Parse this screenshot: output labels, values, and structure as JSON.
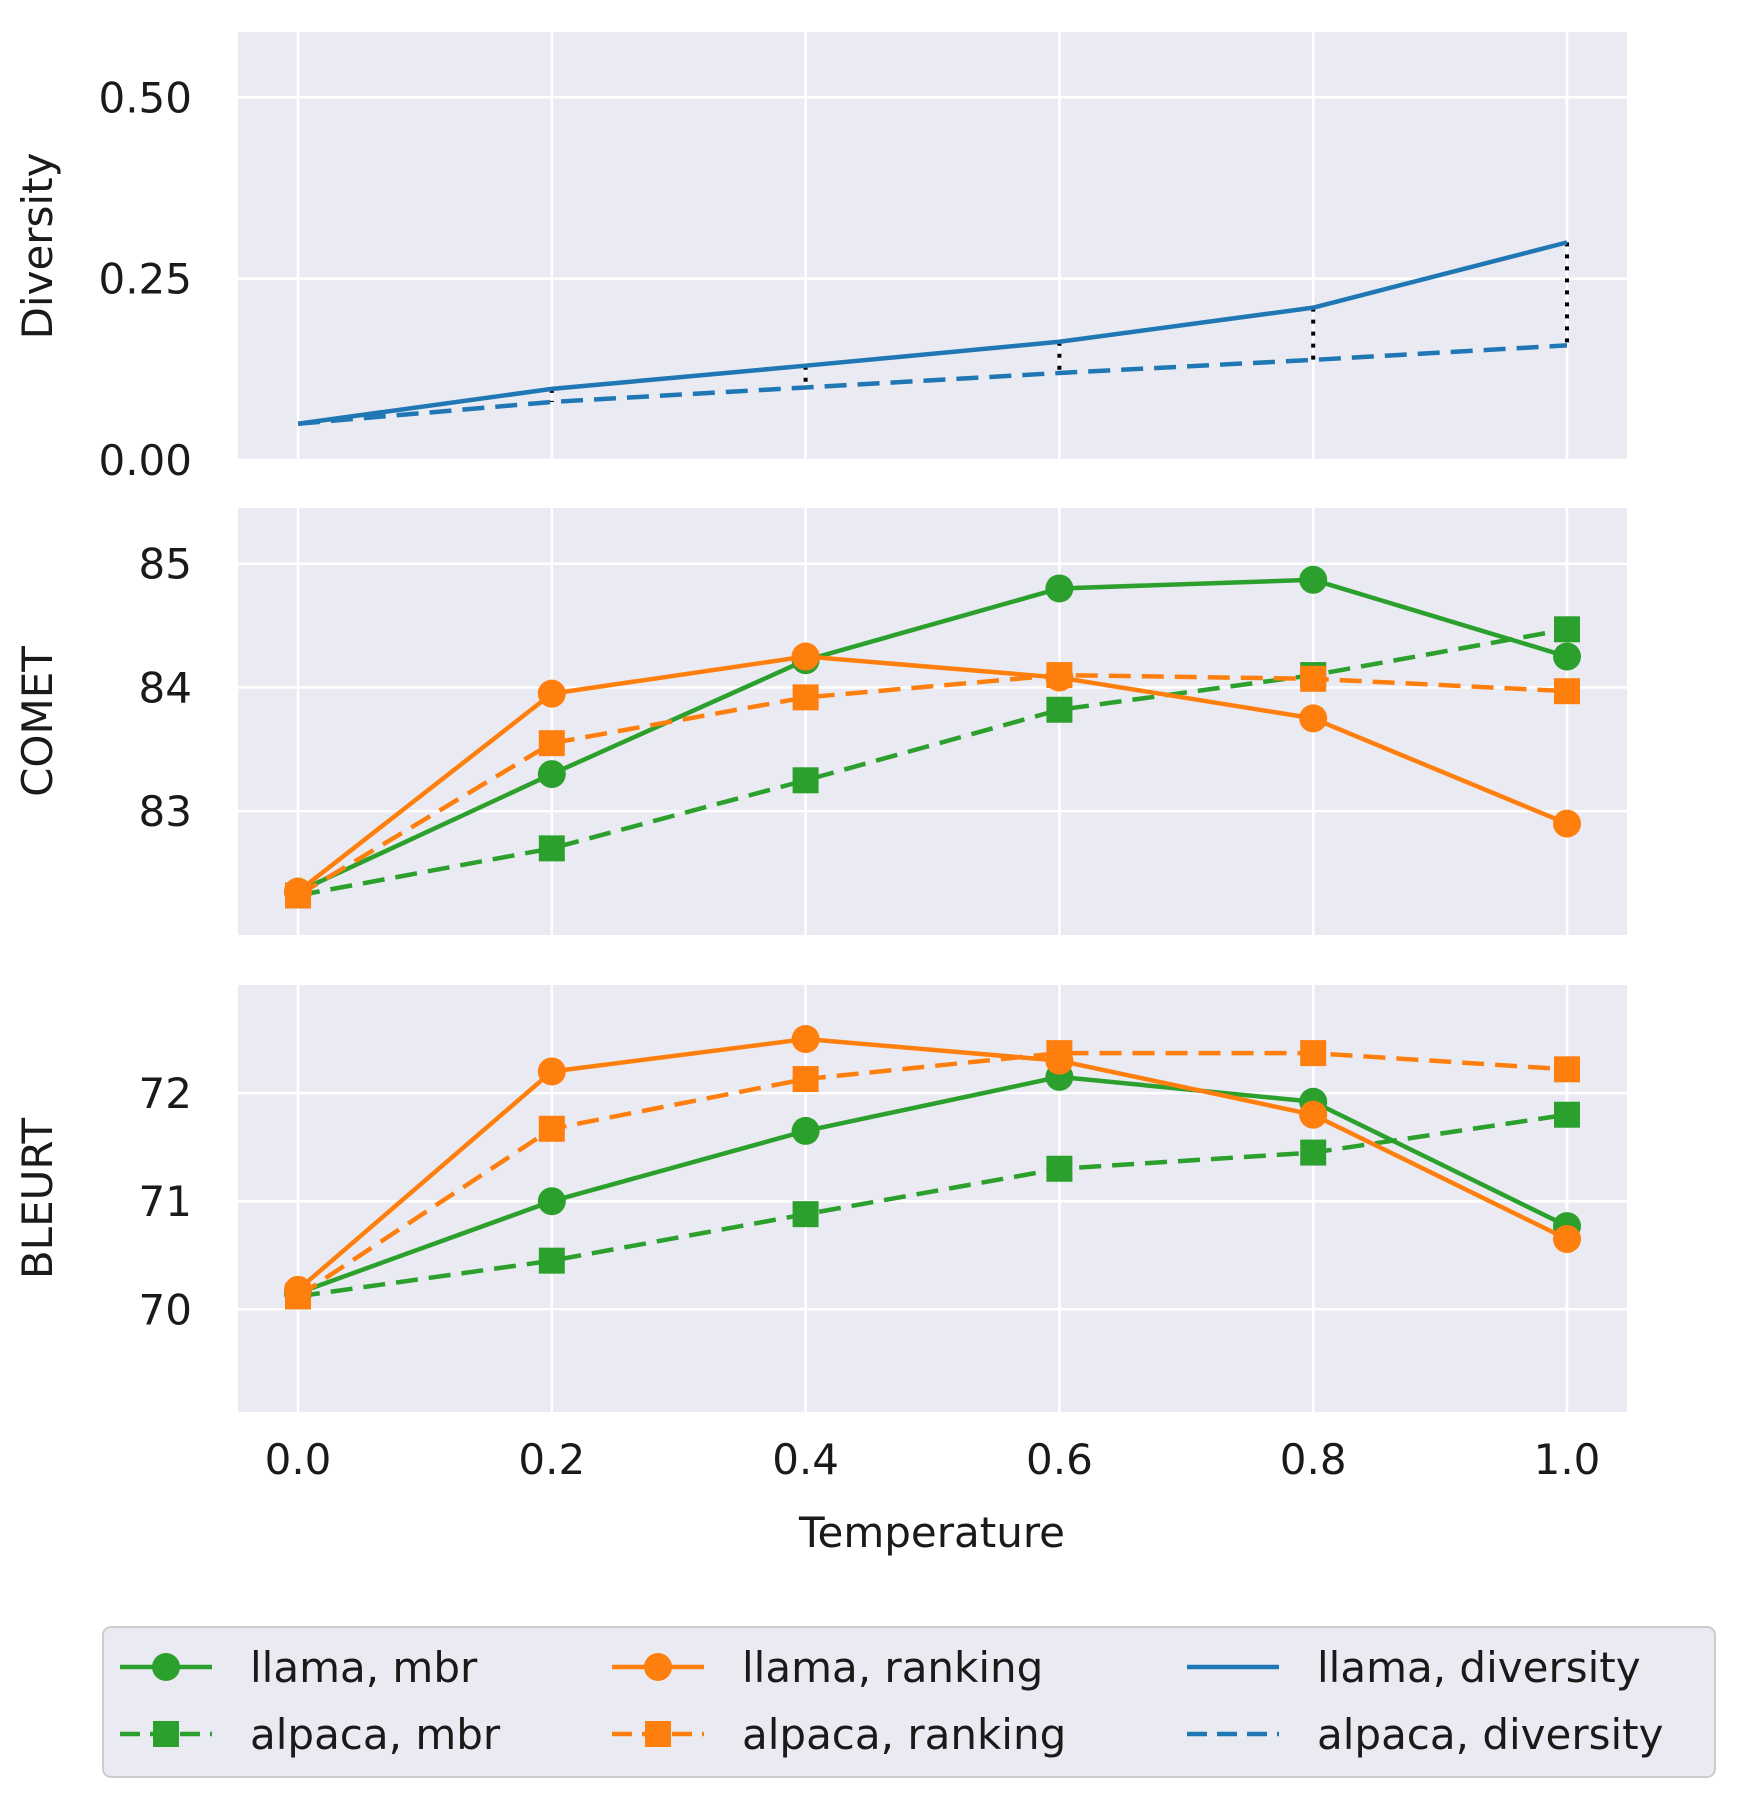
{
  "chart_data": {
    "type": "line",
    "xlabel": "Temperature",
    "x": [
      0.0,
      0.2,
      0.4,
      0.6,
      0.8,
      1.0
    ],
    "x_tick_labels": [
      "0.0",
      "0.2",
      "0.4",
      "0.6",
      "0.8",
      "1.0"
    ],
    "colors": {
      "mbr": "#2ca02c",
      "ranking": "#ff7f0e",
      "diversity": "#1f77b4",
      "background": "#eaeaf2",
      "grid": "#ffffff",
      "gap": "#000000"
    },
    "panels": [
      {
        "id": "diversity",
        "ylabel": "Diversity",
        "ylim": [
          0.0,
          0.59
        ],
        "yticks": [
          0.0,
          0.25,
          0.5
        ],
        "ytick_labels": [
          "0.00",
          "0.25",
          "0.50"
        ],
        "gap_lines": true,
        "series": [
          {
            "name": "llama, diversity",
            "color_key": "diversity",
            "dash": "solid",
            "marker": "none",
            "values": [
              0.05,
              0.098,
              0.13,
              0.163,
              0.21,
              0.3
            ]
          },
          {
            "name": "alpaca, diversity",
            "color_key": "diversity",
            "dash": "dashed",
            "marker": "none",
            "values": [
              0.05,
              0.08,
              0.1,
              0.12,
              0.138,
              0.158
            ]
          }
        ]
      },
      {
        "id": "comet",
        "ylabel": "COMET",
        "ylim": [
          82.0,
          85.45
        ],
        "yticks": [
          83,
          84,
          85
        ],
        "ytick_labels": [
          "83",
          "84",
          "85"
        ],
        "gap_lines": false,
        "series": [
          {
            "name": "llama, mbr",
            "color_key": "mbr",
            "dash": "solid",
            "marker": "circle",
            "values": [
              82.35,
              83.3,
              84.22,
              84.8,
              84.87,
              84.25
            ]
          },
          {
            "name": "alpaca, mbr",
            "color_key": "mbr",
            "dash": "dashed",
            "marker": "square",
            "values": [
              82.32,
              82.7,
              83.25,
              83.82,
              84.1,
              84.47
            ]
          },
          {
            "name": "llama, ranking",
            "color_key": "ranking",
            "dash": "solid",
            "marker": "circle",
            "values": [
              82.35,
              83.95,
              84.25,
              84.08,
              83.75,
              82.9
            ]
          },
          {
            "name": "alpaca, ranking",
            "color_key": "ranking",
            "dash": "dashed",
            "marker": "square",
            "values": [
              82.32,
              83.55,
              83.92,
              84.1,
              84.07,
              83.97
            ]
          }
        ]
      },
      {
        "id": "bleurt",
        "ylabel": "BLEURT",
        "ylim": [
          69.05,
          73.0
        ],
        "yticks": [
          70,
          71,
          72
        ],
        "ytick_labels": [
          "70",
          "71",
          "72"
        ],
        "gap_lines": false,
        "series": [
          {
            "name": "llama, mbr",
            "color_key": "mbr",
            "dash": "solid",
            "marker": "circle",
            "values": [
              70.15,
              71.0,
              71.65,
              72.15,
              71.92,
              70.77
            ]
          },
          {
            "name": "alpaca, mbr",
            "color_key": "mbr",
            "dash": "dashed",
            "marker": "square",
            "values": [
              70.12,
              70.45,
              70.88,
              71.3,
              71.45,
              71.8
            ]
          },
          {
            "name": "llama, ranking",
            "color_key": "ranking",
            "dash": "solid",
            "marker": "circle",
            "values": [
              70.18,
              72.2,
              72.5,
              72.3,
              71.8,
              70.65
            ]
          },
          {
            "name": "alpaca, ranking",
            "color_key": "ranking",
            "dash": "dashed",
            "marker": "square",
            "values": [
              70.12,
              71.67,
              72.13,
              72.37,
              72.37,
              72.22
            ]
          }
        ]
      }
    ],
    "legend": {
      "position": "bottom",
      "columns": 3,
      "entries": [
        {
          "label": "llama, mbr",
          "color_key": "mbr",
          "dash": "solid",
          "marker": "circle"
        },
        {
          "label": "alpaca, mbr",
          "color_key": "mbr",
          "dash": "dashed",
          "marker": "square"
        },
        {
          "label": "llama, ranking",
          "color_key": "ranking",
          "dash": "solid",
          "marker": "circle"
        },
        {
          "label": "alpaca, ranking",
          "color_key": "ranking",
          "dash": "dashed",
          "marker": "square"
        },
        {
          "label": "llama, diversity",
          "color_key": "diversity",
          "dash": "solid",
          "marker": "none"
        },
        {
          "label": "alpaca, diversity",
          "color_key": "diversity",
          "dash": "dashed",
          "marker": "none"
        }
      ]
    }
  }
}
